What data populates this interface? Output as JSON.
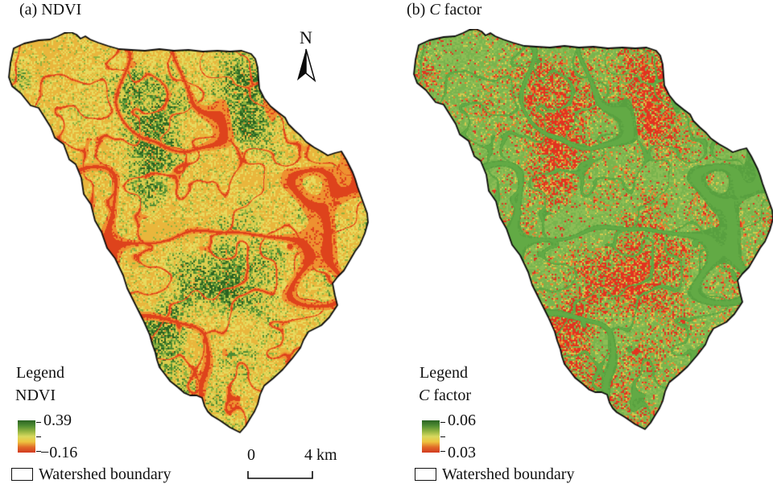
{
  "panels": [
    {
      "title_pre": "(a) NDVI",
      "title_italic": "",
      "title_post": "",
      "legend_heading": "Legend",
      "layer_italic": "",
      "layer_label": "NDVI",
      "ramp_max": "0.39",
      "ramp_min": "−0.16",
      "boundary_label": "Watershed boundary",
      "map_type": "ndvi",
      "palette": {
        "base": "#dccd4e",
        "base_light": "#e7da5e",
        "green_light": "#8fb23f",
        "green": "#4f8c33",
        "green_dark": "#2a6322",
        "warm": "#e9b63c",
        "vein_core": "#de431c",
        "vein_edge": "#ee9130"
      }
    },
    {
      "title_pre": "(b) ",
      "title_italic": "C",
      "title_post": " factor",
      "legend_heading": "Legend",
      "layer_italic": "C",
      "layer_label": " factor",
      "ramp_max": "0.06",
      "ramp_min": "0.03",
      "boundary_label": "Watershed boundary",
      "map_type": "cfactor",
      "palette": {
        "green": "#79b44d",
        "green2": "#8cbd55",
        "green_dark": "#58a03f",
        "yellow": "#d3ca4e",
        "orange": "#ec7c2d",
        "red": "#e23320",
        "vein": "#62aa45"
      }
    }
  ],
  "ramp_colors": [
    "#2a6322",
    "#4f8c33",
    "#8fb23f",
    "#d8d95e",
    "#eec43f",
    "#e06a28",
    "#d23a20"
  ],
  "north_label": "N",
  "scalebar": {
    "zero": "0",
    "end": "4 km"
  },
  "boundary_color": "#0a0a0a",
  "background_color": "#ffffff"
}
